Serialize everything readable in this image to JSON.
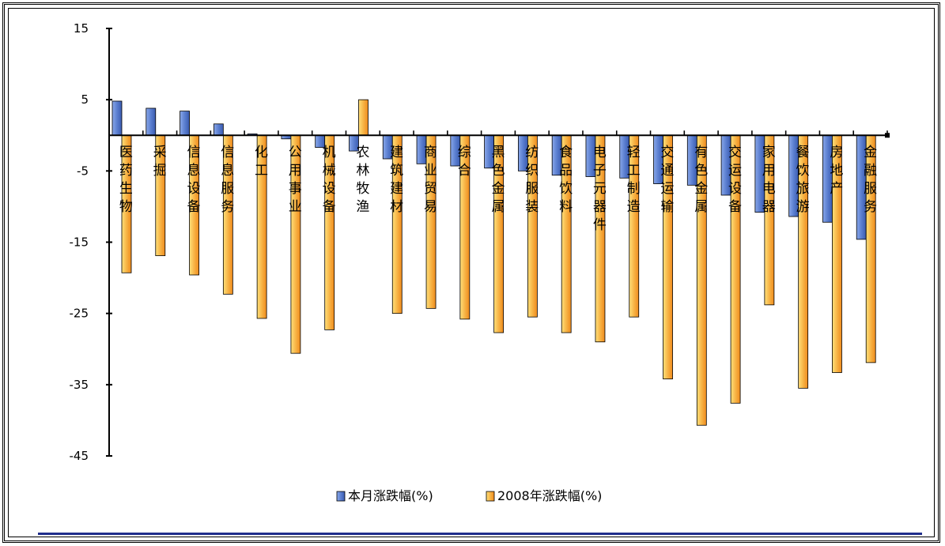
{
  "chart_data": {
    "type": "bar",
    "title": "",
    "xlabel": "",
    "ylabel": "",
    "ylim": [
      -45,
      15
    ],
    "yticks": [
      15,
      5,
      -5,
      -15,
      -25,
      -35,
      -45
    ],
    "grid": false,
    "legend_position": "bottom",
    "categories": [
      "医药生物",
      "采掘",
      "信息设备",
      "信息服务",
      "化工",
      "公用事业",
      "机械设备",
      "农林牧渔",
      "建筑建材",
      "商业贸易",
      "综合",
      "黑色金属",
      "纺织服装",
      "食品饮料",
      "电子元器件",
      "轻工制造",
      "交通运输",
      "有色金属",
      "交运设备",
      "家用电器",
      "餐饮旅游",
      "房地产",
      "金融服务"
    ],
    "series": [
      {
        "name": "本月涨跌幅(%)",
        "color": "#5b7fd0",
        "values": [
          4.8,
          3.8,
          3.4,
          1.6,
          0.2,
          -0.5,
          -1.7,
          -2.2,
          -3.3,
          -4.0,
          -4.3,
          -4.6,
          -5.0,
          -5.6,
          -5.8,
          -6.0,
          -6.8,
          -7.0,
          -8.4,
          -10.8,
          -11.4,
          -12.2,
          -14.6
        ]
      },
      {
        "name": "2008年涨跌幅(%)",
        "color": "#f5a53a",
        "values": [
          -19.3,
          -16.9,
          -19.6,
          -22.3,
          -25.7,
          -30.6,
          -27.3,
          5.0,
          -25.0,
          -24.3,
          -25.8,
          -27.7,
          -25.5,
          -27.7,
          -29.0,
          -25.5,
          -34.2,
          -40.7,
          -37.6,
          -23.8,
          -35.5,
          -33.3,
          -31.9
        ]
      }
    ]
  }
}
